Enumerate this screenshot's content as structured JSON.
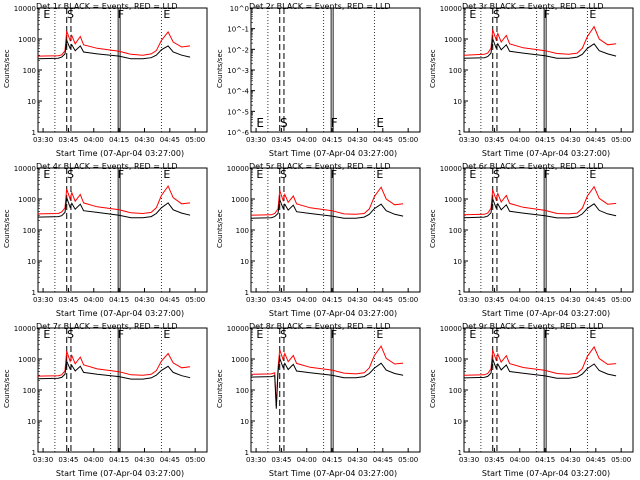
{
  "chart_data": [
    {
      "type": "line",
      "title": "Det 1r BLACK = Events, RED = LLD",
      "ylabel": "Counts/sec",
      "xlabel": "Start Time (07-Apr-04 03:27:00)",
      "x_ticks": [
        "03:30",
        "03:45",
        "04:00",
        "04:15",
        "04:30",
        "04:45",
        "05:00"
      ],
      "ylim": [
        1,
        10000
      ],
      "yscale": "log",
      "y_ticks": [
        "1",
        "10",
        "100",
        "1000",
        "10000"
      ],
      "markers": [
        "E",
        "S",
        "F",
        "E"
      ],
      "series": [
        {
          "color": "#ff0000",
          "x_min": [
            0,
            12,
            14,
            16,
            17,
            19,
            20,
            22,
            25,
            27,
            35,
            48,
            55,
            62,
            67,
            70,
            73,
            77,
            80,
            85,
            90
          ],
          "values": [
            280,
            290,
            310,
            420,
            1800,
            900,
            1300,
            700,
            1200,
            650,
            500,
            400,
            320,
            300,
            330,
            420,
            900,
            1700,
            800,
            550,
            600
          ]
        },
        {
          "color": "#000000",
          "x_min": [
            0,
            12,
            14,
            16,
            17,
            19,
            20,
            22,
            25,
            27,
            35,
            48,
            55,
            62,
            67,
            70,
            73,
            77,
            80,
            85,
            90
          ],
          "values": [
            230,
            240,
            260,
            330,
            900,
            500,
            650,
            420,
            600,
            380,
            330,
            280,
            230,
            230,
            250,
            300,
            450,
            600,
            380,
            300,
            260
          ]
        }
      ]
    },
    {
      "type": "line",
      "title": "Det 2r BLACK = Events, RED = LLD",
      "ylabel": "Counts/sec",
      "xlabel": "Start Time (07-Apr-04 03:27:00)",
      "x_ticks": [
        "03:30",
        "03:45",
        "04:00",
        "04:15",
        "04:30",
        "04:45",
        "05:00"
      ],
      "ylim": [
        1,
        1e-06
      ],
      "yscale": "log",
      "y_ticks": [
        "10^-6",
        "10^-5",
        "10^-4",
        "10^-3",
        "10^-2",
        "10^-1",
        "10^0"
      ],
      "markers": [
        "E",
        "S",
        "F",
        "E"
      ],
      "series": []
    },
    {
      "type": "line",
      "title": "Det 3r BLACK = Events, RED = LLD",
      "ylabel": "Counts/sec",
      "xlabel": "Start Time (07-Apr-04 03:27:00)",
      "x_ticks": [
        "03:30",
        "03:45",
        "04:00",
        "04:15",
        "04:30",
        "04:45",
        "05:00"
      ],
      "ylim": [
        1,
        10000
      ],
      "yscale": "log",
      "y_ticks": [
        "1",
        "10",
        "100",
        "1000",
        "10000"
      ],
      "markers": [
        "E",
        "S",
        "F",
        "E"
      ],
      "series": [
        {
          "color": "#ff0000",
          "x_min": [
            0,
            12,
            14,
            16,
            17,
            19,
            20,
            22,
            25,
            27,
            35,
            48,
            55,
            62,
            67,
            70,
            73,
            77,
            80,
            85,
            90
          ],
          "values": [
            300,
            320,
            350,
            500,
            2000,
            950,
            1500,
            800,
            1300,
            700,
            520,
            420,
            340,
            320,
            350,
            500,
            1200,
            2500,
            1000,
            650,
            700
          ]
        },
        {
          "color": "#000000",
          "x_min": [
            0,
            12,
            14,
            16,
            17,
            19,
            20,
            22,
            25,
            27,
            35,
            48,
            55,
            62,
            67,
            70,
            73,
            77,
            80,
            85,
            90
          ],
          "values": [
            240,
            250,
            270,
            350,
            1000,
            520,
            700,
            450,
            650,
            400,
            350,
            290,
            240,
            240,
            260,
            320,
            500,
            700,
            420,
            330,
            280
          ]
        }
      ]
    },
    {
      "type": "line",
      "title": "Det 4r BLACK = Events, RED = LLD",
      "ylabel": "Counts/sec",
      "xlabel": "Start Time (07-Apr-04 03:27:00)",
      "x_ticks": [
        "03:30",
        "03:45",
        "04:00",
        "04:15",
        "04:30",
        "04:45",
        "05:00"
      ],
      "ylim": [
        1,
        10000
      ],
      "yscale": "log",
      "y_ticks": [
        "1",
        "10",
        "100",
        "1000",
        "10000"
      ],
      "markers": [
        "E",
        "S",
        "F",
        "E"
      ],
      "series": [
        {
          "color": "#ff0000",
          "x_min": [
            0,
            12,
            14,
            16,
            17,
            19,
            20,
            22,
            25,
            27,
            35,
            48,
            55,
            62,
            67,
            70,
            73,
            77,
            80,
            85,
            90
          ],
          "values": [
            330,
            340,
            380,
            520,
            2100,
            1000,
            1600,
            850,
            1400,
            750,
            560,
            450,
            360,
            340,
            370,
            520,
            1300,
            2600,
            1100,
            700,
            750
          ]
        },
        {
          "color": "#000000",
          "x_min": [
            0,
            12,
            14,
            16,
            17,
            19,
            20,
            22,
            25,
            27,
            35,
            48,
            55,
            62,
            67,
            70,
            73,
            77,
            80,
            85,
            90
          ],
          "values": [
            260,
            270,
            290,
            370,
            1100,
            540,
            720,
            470,
            680,
            420,
            370,
            300,
            250,
            250,
            270,
            340,
            520,
            750,
            450,
            350,
            300
          ]
        }
      ]
    },
    {
      "type": "line",
      "title": "Det 5r BLACK = Events, RED = LLD",
      "ylabel": "Counts/sec",
      "xlabel": "Start Time (07-Apr-04 03:27:00)",
      "x_ticks": [
        "03:30",
        "03:45",
        "04:00",
        "04:15",
        "04:30",
        "04:45",
        "05:00"
      ],
      "ylim": [
        1,
        10000
      ],
      "yscale": "log",
      "y_ticks": [
        "1",
        "10",
        "100",
        "1000",
        "10000"
      ],
      "markers": [
        "E",
        "S",
        "F",
        "E"
      ],
      "series": [
        {
          "color": "#ff0000",
          "x_min": [
            0,
            12,
            14,
            16,
            17,
            19,
            20,
            22,
            25,
            27,
            35,
            48,
            55,
            62,
            67,
            70,
            73,
            77,
            80,
            85,
            90
          ],
          "values": [
            300,
            310,
            340,
            480,
            1900,
            900,
            1400,
            780,
            1250,
            700,
            520,
            420,
            330,
            320,
            340,
            480,
            1200,
            2400,
            1000,
            650,
            700
          ]
        },
        {
          "color": "#000000",
          "x_min": [
            0,
            12,
            14,
            16,
            17,
            19,
            20,
            22,
            25,
            27,
            35,
            48,
            55,
            62,
            67,
            70,
            73,
            77,
            80,
            85,
            90
          ],
          "values": [
            240,
            250,
            270,
            340,
            950,
            500,
            680,
            440,
            630,
            390,
            340,
            280,
            240,
            240,
            260,
            320,
            490,
            680,
            420,
            320,
            280
          ]
        }
      ]
    },
    {
      "type": "line",
      "title": "Det 6r BLACK = Events, RED = LLD",
      "ylabel": "Counts/sec",
      "xlabel": "Start Time (07-Apr-04 03:27:00)",
      "x_ticks": [
        "03:30",
        "03:45",
        "04:00",
        "04:15",
        "04:30",
        "04:45",
        "05:00"
      ],
      "ylim": [
        1,
        10000
      ],
      "yscale": "log",
      "y_ticks": [
        "1",
        "10",
        "100",
        "1000",
        "10000"
      ],
      "markers": [
        "E",
        "S",
        "F",
        "E"
      ],
      "series": [
        {
          "color": "#ff0000",
          "x_min": [
            0,
            12,
            14,
            16,
            17,
            19,
            20,
            22,
            25,
            27,
            35,
            48,
            55,
            62,
            67,
            70,
            73,
            77,
            80,
            85,
            90
          ],
          "values": [
            310,
            320,
            350,
            500,
            2000,
            950,
            1500,
            800,
            1300,
            720,
            540,
            430,
            340,
            330,
            350,
            500,
            1250,
            2500,
            1050,
            680,
            720
          ]
        },
        {
          "color": "#000000",
          "x_min": [
            0,
            12,
            14,
            16,
            17,
            19,
            20,
            22,
            25,
            27,
            35,
            48,
            55,
            62,
            67,
            70,
            73,
            77,
            80,
            85,
            90
          ],
          "values": [
            250,
            260,
            280,
            360,
            1000,
            520,
            700,
            450,
            650,
            400,
            350,
            290,
            245,
            245,
            265,
            330,
            500,
            700,
            430,
            330,
            290
          ]
        }
      ]
    },
    {
      "type": "line",
      "title": "Det 7r BLACK = Events, RED = LLD",
      "ylabel": "Counts/sec",
      "xlabel": "Start Time (07-Apr-04 03:27:00)",
      "x_ticks": [
        "03:30",
        "03:45",
        "04:00",
        "04:15",
        "04:30",
        "04:45",
        "05:00"
      ],
      "ylim": [
        1,
        10000
      ],
      "yscale": "log",
      "y_ticks": [
        "1",
        "10",
        "100",
        "1000",
        "10000"
      ],
      "markers": [
        "E",
        "S",
        "F",
        "E"
      ],
      "series": [
        {
          "color": "#ff0000",
          "x_min": [
            0,
            12,
            14,
            16,
            17,
            19,
            20,
            22,
            25,
            27,
            35,
            48,
            55,
            62,
            67,
            70,
            73,
            77,
            80,
            85,
            90
          ],
          "values": [
            280,
            290,
            310,
            420,
            1800,
            850,
            1300,
            700,
            1150,
            650,
            480,
            390,
            310,
            300,
            320,
            420,
            850,
            1500,
            750,
            520,
            560
          ]
        },
        {
          "color": "#000000",
          "x_min": [
            0,
            12,
            14,
            16,
            17,
            19,
            20,
            22,
            25,
            27,
            35,
            48,
            55,
            62,
            67,
            70,
            73,
            77,
            80,
            85,
            90
          ],
          "values": [
            230,
            240,
            255,
            320,
            850,
            480,
            620,
            410,
            580,
            370,
            320,
            270,
            225,
            225,
            245,
            300,
            430,
            580,
            370,
            290,
            250
          ]
        }
      ]
    },
    {
      "type": "line",
      "title": "Det 8r BLACK = Events, RED = LLD",
      "ylabel": "Counts/sec",
      "xlabel": "Start Time (07-Apr-04 03:27:00)",
      "x_ticks": [
        "03:30",
        "03:45",
        "04:00",
        "04:15",
        "04:30",
        "04:45",
        "05:00"
      ],
      "ylim": [
        1,
        10000
      ],
      "yscale": "log",
      "y_ticks": [
        "1",
        "10",
        "100",
        "1000",
        "10000"
      ],
      "markers": [
        "E",
        "S",
        "F",
        "E"
      ],
      "series": [
        {
          "color": "#ff0000",
          "x_min": [
            0,
            12,
            14,
            15,
            16,
            17,
            19,
            20,
            22,
            25,
            27,
            35,
            48,
            55,
            62,
            67,
            70,
            73,
            77,
            80,
            85,
            90
          ],
          "values": [
            320,
            330,
            360,
            30,
            500,
            2000,
            950,
            1500,
            820,
            1300,
            720,
            540,
            440,
            350,
            330,
            360,
            520,
            1300,
            2600,
            1050,
            690,
            740
          ]
        },
        {
          "color": "#000000",
          "x_min": [
            0,
            12,
            14,
            15,
            16,
            17,
            19,
            20,
            22,
            25,
            27,
            35,
            48,
            55,
            62,
            67,
            70,
            73,
            77,
            80,
            85,
            90
          ],
          "values": [
            260,
            270,
            290,
            25,
            370,
            1050,
            530,
            720,
            460,
            670,
            410,
            360,
            300,
            250,
            250,
            270,
            340,
            510,
            730,
            440,
            340,
            300
          ]
        }
      ]
    },
    {
      "type": "line",
      "title": "Det 9r BLACK = Events, RED = LLD",
      "ylabel": "Counts/sec",
      "xlabel": "Start Time (07-Apr-04 03:27:00)",
      "x_ticks": [
        "03:30",
        "03:45",
        "04:00",
        "04:15",
        "04:30",
        "04:45",
        "05:00"
      ],
      "ylim": [
        1,
        10000
      ],
      "yscale": "log",
      "y_ticks": [
        "1",
        "10",
        "100",
        "1000",
        "10000"
      ],
      "markers": [
        "E",
        "S",
        "F",
        "E"
      ],
      "series": [
        {
          "color": "#ff0000",
          "x_min": [
            0,
            12,
            14,
            16,
            17,
            19,
            20,
            22,
            25,
            27,
            35,
            48,
            55,
            62,
            67,
            70,
            73,
            77,
            80,
            85,
            90
          ],
          "values": [
            300,
            310,
            340,
            480,
            1950,
            930,
            1450,
            790,
            1280,
            710,
            530,
            430,
            340,
            320,
            345,
            490,
            1220,
            2450,
            1030,
            670,
            710
          ]
        },
        {
          "color": "#000000",
          "x_min": [
            0,
            12,
            14,
            16,
            17,
            19,
            20,
            22,
            25,
            27,
            35,
            48,
            55,
            62,
            67,
            70,
            73,
            77,
            80,
            85,
            90
          ],
          "values": [
            245,
            255,
            275,
            350,
            980,
            510,
            690,
            445,
            640,
            395,
            345,
            285,
            240,
            240,
            262,
            325,
            495,
            690,
            425,
            325,
            285
          ]
        }
      ]
    }
  ]
}
